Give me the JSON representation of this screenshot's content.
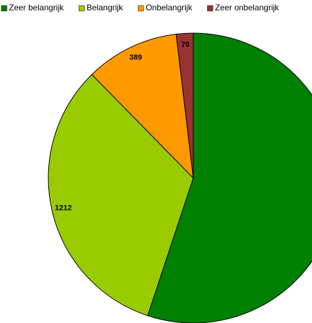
{
  "chart_data": {
    "type": "pie",
    "categories": [
      "Zeer belangrijk",
      "Belangrijk",
      "Onbelangrijk",
      "Zeer onbelangrijk"
    ],
    "values": [
      2050,
      1212,
      389,
      70
    ],
    "colors": [
      "#008000",
      "#99cc00",
      "#ff9900",
      "#993333"
    ],
    "legend": "top"
  }
}
